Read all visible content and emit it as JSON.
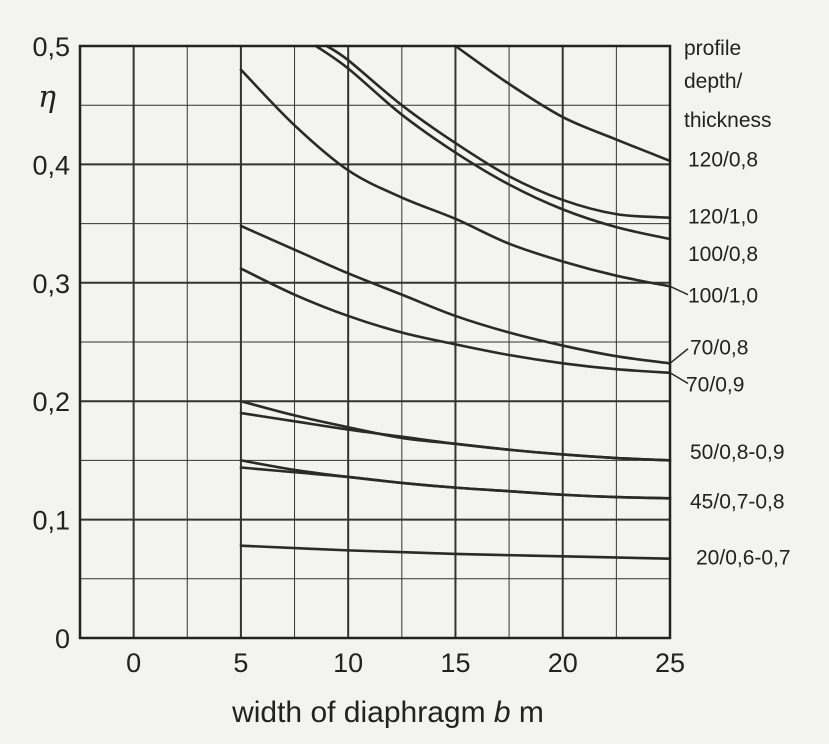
{
  "chart_data": {
    "type": "line",
    "xlabel": {
      "prefix": "width of diaphragm ",
      "var": "b",
      "suffix": " m"
    },
    "ylabel": "η",
    "legend_title": [
      "profile",
      "depth/",
      "thickness"
    ],
    "xlim": [
      -2.5,
      25
    ],
    "ylim": [
      0,
      0.5
    ],
    "x_ticks": [
      0,
      5,
      10,
      15,
      20,
      25
    ],
    "y_ticks": [
      0,
      0.1,
      0.2,
      0.3,
      0.4,
      0.5
    ],
    "x_tick_labels": [
      "0",
      "5",
      "10",
      "15",
      "20",
      "25"
    ],
    "y_tick_labels": [
      "0",
      "0,1",
      "0,2",
      "0,3",
      "0,4",
      "0,5"
    ],
    "grid": true,
    "series": [
      {
        "name": "120/0,8",
        "x": [
          15,
          17.5,
          20,
          22.5,
          25
        ],
        "y": [
          0.5,
          0.468,
          0.44,
          0.421,
          0.403
        ]
      },
      {
        "name": "120/1,0",
        "x": [
          9,
          10,
          12.5,
          15,
          17.5,
          20,
          22.5,
          25
        ],
        "y": [
          0.5,
          0.488,
          0.45,
          0.418,
          0.39,
          0.37,
          0.358,
          0.355
        ]
      },
      {
        "name": "100/0,8",
        "x": [
          8.5,
          10,
          12.5,
          15,
          17.5,
          20,
          22.5,
          25
        ],
        "y": [
          0.5,
          0.481,
          0.442,
          0.41,
          0.383,
          0.362,
          0.347,
          0.337
        ]
      },
      {
        "name": "100/1,0",
        "x": [
          5,
          7.5,
          10,
          12.5,
          15,
          17.5,
          20,
          22.5,
          25
        ],
        "y": [
          0.48,
          0.433,
          0.395,
          0.372,
          0.354,
          0.333,
          0.318,
          0.306,
          0.297
        ]
      },
      {
        "name": "70/0,8",
        "x": [
          5,
          7.5,
          10,
          12.5,
          15,
          17.5,
          20,
          22.5,
          25
        ],
        "y": [
          0.348,
          0.328,
          0.308,
          0.29,
          0.272,
          0.258,
          0.247,
          0.238,
          0.232
        ]
      },
      {
        "name": "70/0,9",
        "x": [
          5,
          7.5,
          10,
          12.5,
          15,
          17.5,
          20,
          22.5,
          25
        ],
        "y": [
          0.312,
          0.29,
          0.272,
          0.258,
          0.248,
          0.239,
          0.232,
          0.227,
          0.224
        ]
      },
      {
        "name": "50/0,8-0,9",
        "x": [
          5,
          7.5,
          10,
          12.5,
          15,
          17.5,
          20,
          22.5,
          25
        ],
        "y": [
          0.2,
          0.188,
          0.178,
          0.169,
          0.164,
          0.159,
          0.155,
          0.152,
          0.15
        ]
      },
      {
        "name": "",
        "x": [
          5,
          7.5,
          10,
          12.5,
          15,
          17.5,
          20,
          22.5,
          25
        ],
        "y": [
          0.19,
          0.183,
          0.176,
          0.17,
          0.164,
          0.159,
          0.155,
          0.152,
          0.15
        ]
      },
      {
        "name": "45/0,7-0,8",
        "x": [
          5,
          7.5,
          10,
          12.5,
          15,
          17.5,
          20,
          22.5,
          25
        ],
        "y": [
          0.15,
          0.142,
          0.136,
          0.131,
          0.127,
          0.124,
          0.121,
          0.119,
          0.118
        ]
      },
      {
        "name": "",
        "x": [
          5,
          7.5,
          10,
          12.5,
          15,
          17.5,
          20,
          22.5,
          25
        ],
        "y": [
          0.144,
          0.14,
          0.136,
          0.131,
          0.127,
          0.124,
          0.121,
          0.119,
          0.118
        ]
      },
      {
        "name": "20/0,6-0,7",
        "x": [
          5,
          10,
          15,
          20,
          25
        ],
        "y": [
          0.078,
          0.074,
          0.071,
          0.069,
          0.067
        ]
      }
    ],
    "label_y": [
      0.405,
      0.357,
      0.325,
      0.29,
      0.246,
      0.215,
      0.158,
      0.116,
      0.069
    ]
  }
}
